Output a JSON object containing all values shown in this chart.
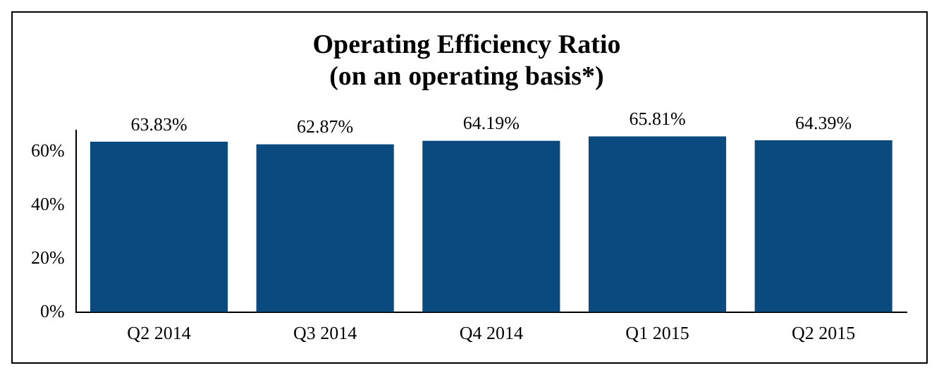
{
  "chart_data": {
    "type": "bar",
    "title": "Operating Efficiency Ratio",
    "subtitle": "(on an operating basis*)",
    "categories": [
      "Q2 2014",
      "Q3 2014",
      "Q4 2014",
      "Q1 2015",
      "Q2 2015"
    ],
    "values": [
      63.83,
      62.87,
      64.19,
      65.81,
      64.39
    ],
    "value_labels": [
      "63.83%",
      "62.87%",
      "64.19%",
      "65.81%",
      "64.39%"
    ],
    "color": "#0a4a7f",
    "ylim": [
      0,
      68
    ],
    "yticks": [
      {
        "value": 0,
        "label": "0%"
      },
      {
        "value": 20,
        "label": "20%"
      },
      {
        "value": 40,
        "label": "40%"
      },
      {
        "value": 60,
        "label": "60%"
      }
    ],
    "grid": false,
    "legend": false
  }
}
